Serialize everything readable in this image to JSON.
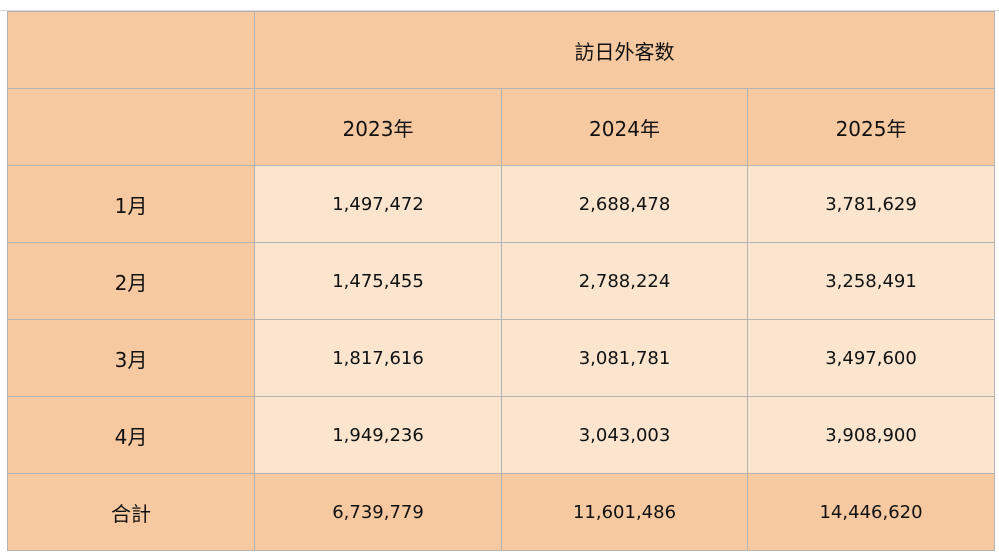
{
  "table": {
    "group_header": "訪日外客数",
    "year_headers": [
      "2023年",
      "2024年",
      "2025年"
    ],
    "rows": [
      {
        "label": "1月",
        "values": [
          "1,497,472",
          "2,688,478",
          "3,781,629"
        ]
      },
      {
        "label": "2月",
        "values": [
          "1,475,455",
          "2,788,224",
          "3,258,491"
        ]
      },
      {
        "label": "3月",
        "values": [
          "1,817,616",
          "3,081,781",
          "3,497,600"
        ]
      },
      {
        "label": "4月",
        "values": [
          "1,949,236",
          "3,043,003",
          "3,908,900"
        ]
      }
    ],
    "total": {
      "label": "合計",
      "values": [
        "6,739,779",
        "11,601,486",
        "14,446,620"
      ]
    }
  },
  "colors": {
    "header_bg": "#f7c9a0",
    "cell_bg": "#fbe5cf",
    "border": "#b3b3b3"
  }
}
